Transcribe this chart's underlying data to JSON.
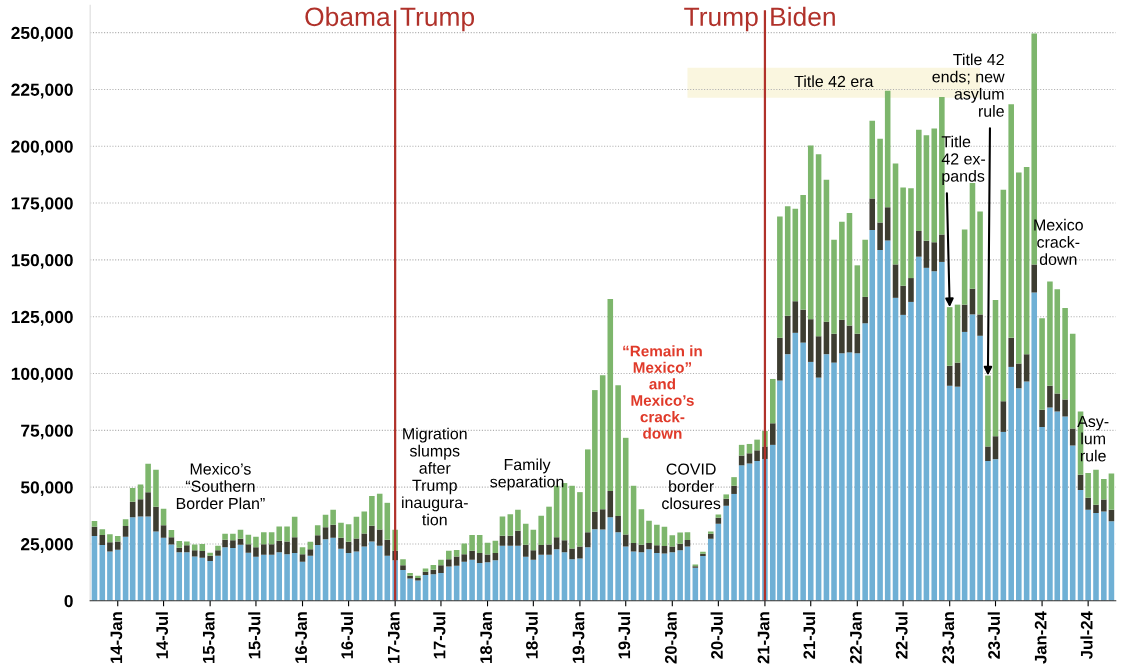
{
  "chart_data": {
    "type": "bar",
    "stacked": true,
    "x": [
      "2013-10",
      "2013-11",
      "2013-12",
      "2014-01",
      "2014-02",
      "2014-03",
      "2014-04",
      "2014-05",
      "2014-06",
      "2014-07",
      "2014-08",
      "2014-09",
      "2014-10",
      "2014-11",
      "2014-12",
      "2015-01",
      "2015-02",
      "2015-03",
      "2015-04",
      "2015-05",
      "2015-06",
      "2015-07",
      "2015-08",
      "2015-09",
      "2015-10",
      "2015-11",
      "2015-12",
      "2016-01",
      "2016-02",
      "2016-03",
      "2016-04",
      "2016-05",
      "2016-06",
      "2016-07",
      "2016-08",
      "2016-09",
      "2016-10",
      "2016-11",
      "2016-12",
      "2017-01",
      "2017-02",
      "2017-03",
      "2017-04",
      "2017-05",
      "2017-06",
      "2017-07",
      "2017-08",
      "2017-09",
      "2017-10",
      "2017-11",
      "2017-12",
      "2018-01",
      "2018-02",
      "2018-03",
      "2018-04",
      "2018-05",
      "2018-06",
      "2018-07",
      "2018-08",
      "2018-09",
      "2018-10",
      "2018-11",
      "2018-12",
      "2019-01",
      "2019-02",
      "2019-03",
      "2019-04",
      "2019-05",
      "2019-06",
      "2019-07",
      "2019-08",
      "2019-09",
      "2019-10",
      "2019-11",
      "2019-12",
      "2020-01",
      "2020-02",
      "2020-03",
      "2020-04",
      "2020-05",
      "2020-06",
      "2020-07",
      "2020-08",
      "2020-09",
      "2020-10",
      "2020-11",
      "2020-12",
      "2021-01",
      "2021-02",
      "2021-03",
      "2021-04",
      "2021-05",
      "2021-06",
      "2021-07",
      "2021-08",
      "2021-09",
      "2021-10",
      "2021-11",
      "2021-12",
      "2022-01",
      "2022-02",
      "2022-03",
      "2022-04",
      "2022-05",
      "2022-06",
      "2022-07",
      "2022-08",
      "2022-09",
      "2022-10",
      "2022-11",
      "2022-12",
      "2023-01",
      "2023-02",
      "2023-03",
      "2023-04",
      "2023-05",
      "2023-06",
      "2023-07",
      "2023-08",
      "2023-09",
      "2023-10",
      "2023-11",
      "2023-12",
      "2024-01",
      "2024-02",
      "2024-03",
      "2024-04",
      "2024-05",
      "2024-06",
      "2024-07",
      "2024-08",
      "2024-09",
      "2024-10"
    ],
    "series": [
      {
        "color": "#6fb0d5",
        "values": [
          28500,
          24500,
          21700,
          22400,
          28200,
          36700,
          37100,
          37100,
          30500,
          27700,
          24800,
          21400,
          21400,
          19500,
          18900,
          17500,
          19800,
          23600,
          23200,
          24600,
          21100,
          19400,
          20200,
          20200,
          21400,
          20500,
          21000,
          17200,
          19800,
          24500,
          27100,
          27700,
          22900,
          21000,
          21700,
          23900,
          26100,
          24200,
          19800,
          17800,
          13500,
          9800,
          8900,
          11300,
          11700,
          12200,
          15100,
          15400,
          17200,
          18000,
          16600,
          16900,
          17800,
          24200,
          24200,
          24200,
          19400,
          18000,
          20200,
          20200,
          22700,
          21300,
          18300,
          18600,
          23500,
          31500,
          31400,
          36700,
          30100,
          23900,
          21700,
          21300,
          22700,
          21000,
          20800,
          21300,
          22200,
          23900,
          14500,
          19700,
          27300,
          33900,
          41800,
          47000,
          59600,
          60400,
          61500,
          62400,
          68600,
          96900,
          108500,
          117900,
          113600,
          105100,
          98200,
          108500,
          104800,
          108900,
          109300,
          108900,
          122100,
          163100,
          154400,
          158500,
          133300,
          125800,
          131500,
          151400,
          146500,
          145000,
          149100,
          94600,
          94200,
          118300,
          126000,
          116600,
          61500,
          62300,
          74300,
          102900,
          93500,
          96500,
          135600,
          76500,
          85000,
          83300,
          81100,
          68300,
          48700,
          40100,
          38600,
          39300,
          35000
        ]
      },
      {
        "color": "#3d3d31",
        "values": [
          4100,
          4400,
          4100,
          3700,
          4700,
          6900,
          7600,
          10600,
          10900,
          5500,
          3100,
          1900,
          3000,
          2700,
          3000,
          2300,
          2400,
          3200,
          3400,
          2700,
          3800,
          4200,
          4700,
          4700,
          5000,
          5600,
          6900,
          3300,
          2900,
          4300,
          5300,
          5800,
          4800,
          5000,
          5700,
          5700,
          6900,
          7200,
          7000,
          4200,
          2100,
          1200,
          1100,
          1500,
          1900,
          3400,
          3200,
          4100,
          3300,
          4000,
          4400,
          3500,
          3200,
          4400,
          4400,
          6600,
          5200,
          4200,
          4300,
          4600,
          5200,
          5300,
          4700,
          5300,
          6600,
          7700,
          8900,
          11600,
          7200,
          5300,
          3700,
          3300,
          2700,
          3400,
          3300,
          2600,
          2900,
          2800,
          700,
          1000,
          2200,
          2600,
          3100,
          3600,
          4300,
          4500,
          4700,
          5500,
          9500,
          18800,
          16900,
          13900,
          14500,
          18800,
          18200,
          14300,
          12700,
          14700,
          11800,
          8600,
          11600,
          13900,
          12000,
          14700,
          14700,
          12800,
          10500,
          11300,
          11900,
          12800,
          12100,
          8800,
          10600,
          12000,
          11300,
          9400,
          6400,
          10100,
          13500,
          12800,
          10900,
          12000,
          12400,
          7600,
          9600,
          7900,
          7500,
          7500,
          6800,
          5200,
          3700,
          5300,
          5000
        ]
      },
      {
        "color": "#7db66c",
        "values": [
          2500,
          2600,
          3500,
          2400,
          3000,
          6000,
          6500,
          12600,
          16300,
          7300,
          3200,
          3000,
          1700,
          2600,
          3100,
          1300,
          2000,
          2700,
          2900,
          4000,
          4100,
          4600,
          5200,
          5200,
          6300,
          6600,
          9100,
          3000,
          3300,
          4400,
          5500,
          6600,
          6600,
          7700,
          9600,
          9700,
          13100,
          15700,
          16300,
          9300,
          2700,
          1200,
          1000,
          1400,
          2100,
          2400,
          3700,
          2800,
          4700,
          6900,
          7900,
          5100,
          5400,
          8500,
          9500,
          9300,
          9300,
          9100,
          12900,
          16600,
          22700,
          25200,
          27600,
          23900,
          36500,
          53500,
          58900,
          84500,
          57500,
          42500,
          25200,
          15700,
          9800,
          9100,
          8500,
          4900,
          4900,
          3500,
          800,
          900,
          1000,
          1500,
          1900,
          3800,
          4700,
          4100,
          4700,
          6800,
          19500,
          53400,
          48200,
          40700,
          50400,
          76400,
          80100,
          62500,
          41400,
          43200,
          49500,
          30100,
          25200,
          34200,
          36900,
          51200,
          44400,
          43300,
          39500,
          44600,
          46400,
          50000,
          60500,
          25800,
          25500,
          33100,
          46500,
          45300,
          31200,
          60000,
          93100,
          102800,
          84100,
          82400,
          101600,
          40200,
          45900,
          45900,
          40200,
          41700,
          27800,
          10900,
          15400,
          9000,
          16000
        ]
      }
    ],
    "xlim": [
      "2013-09-14",
      "2024-10-18"
    ],
    "xticks": [
      {
        "value": "2014-01",
        "label": "14-Jan"
      },
      {
        "value": "2014-07",
        "label": "14-Jul"
      },
      {
        "value": "2015-01",
        "label": "15-Jan"
      },
      {
        "value": "2015-07",
        "label": "15-Jul"
      },
      {
        "value": "2016-01",
        "label": "16-Jan"
      },
      {
        "value": "2016-07",
        "label": "16-Jul"
      },
      {
        "value": "2017-01",
        "label": "17-Jan"
      },
      {
        "value": "2017-07",
        "label": "17-Jul"
      },
      {
        "value": "2018-01",
        "label": "18-Jan"
      },
      {
        "value": "2018-07",
        "label": "18-Jul"
      },
      {
        "value": "2019-01",
        "label": "19-Jan"
      },
      {
        "value": "2019-07",
        "label": "19-Jul"
      },
      {
        "value": "2020-01",
        "label": "20-Jan"
      },
      {
        "value": "2020-07",
        "label": "20-Jul"
      },
      {
        "value": "2021-01",
        "label": "21-Jan"
      },
      {
        "value": "2021-07",
        "label": "21-Jul"
      },
      {
        "value": "2022-01",
        "label": "22-Jan"
      },
      {
        "value": "2022-07",
        "label": "22-Jul"
      },
      {
        "value": "2023-01",
        "label": "23-Jan"
      },
      {
        "value": "2023-07",
        "label": "23-Jul"
      },
      {
        "value": "2024-01",
        "label": "Jan-24"
      },
      {
        "value": "2024-07",
        "label": "Jul-24"
      }
    ],
    "ylim": [
      0,
      262000
    ],
    "yticks": [
      {
        "value": 0,
        "label": "0"
      },
      {
        "value": 25000,
        "label": "25,000"
      },
      {
        "value": 50000,
        "label": "50,000"
      },
      {
        "value": 75000,
        "label": "75,000"
      },
      {
        "value": 100000,
        "label": "100,000"
      },
      {
        "value": 125000,
        "label": "125,000"
      },
      {
        "value": 150000,
        "label": "150,000"
      },
      {
        "value": 175000,
        "label": "175,000"
      },
      {
        "value": 200000,
        "label": "200,000"
      },
      {
        "value": 225000,
        "label": "225,000"
      },
      {
        "value": 250000,
        "label": "250,000"
      }
    ],
    "grid": "y",
    "ref_lines": [
      {
        "axis": "x",
        "value": "2017-01",
        "color": "#b0312a"
      },
      {
        "axis": "x",
        "value": "2021-01",
        "color": "#b0312a"
      }
    ],
    "bands": [
      {
        "axis": "x",
        "from": "2020-03",
        "to": "2023-05",
        "label": "Title 42 era",
        "color": "#faf6df"
      }
    ],
    "annotations": [
      "Obama",
      "Trump",
      "Trump",
      "Biden",
      "Mexico’s\n“Southern\nBorder Plan”",
      "Migration\nslumps\nafter\nTrump\ninaugura-\ntion",
      "Family\nseparation",
      "“Remain in\nMexico”\nand\nMexico’s\ncrack-\ndown",
      "COVID\nborder\nclosures",
      {
        "text": "Title\n42 ex-\npands",
        "x": "2023-01",
        "y": 129200
      },
      {
        "text": "Title 42\nends; new\nasylum\nrule",
        "x": "2023-06",
        "y": 99100
      },
      "Mexico\ncrack-\ndown",
      "Asy-\nlum\nrule"
    ]
  }
}
